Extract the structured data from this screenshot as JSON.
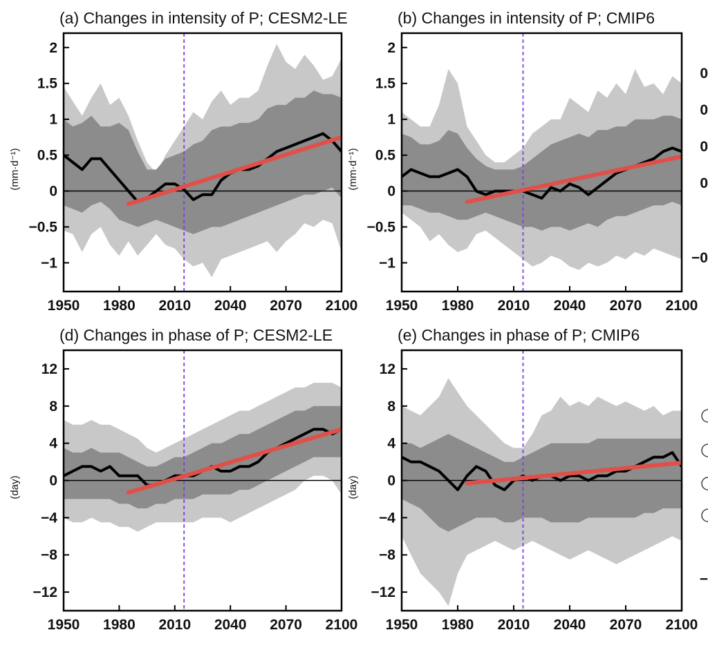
{
  "colors": {
    "band_outer": "#c8c8c8",
    "band_inner": "#8c8c8c",
    "mean_line": "#000000",
    "trend_line": "#e0504a",
    "reference_line": "#7b3fe4",
    "zero_line": "#000000"
  },
  "right_edge": {
    "top_labels": [
      "0",
      "0",
      "0",
      "0",
      "−0"
    ],
    "bottom_labels": [
      "−"
    ]
  },
  "chart_data": [
    {
      "id": "a",
      "type": "line",
      "title": "(a) Changes in intensity of P; CESM2-LE",
      "ylabel": "(mm·d⁻¹)",
      "xlabel": "",
      "xlim": [
        1950,
        2100
      ],
      "ylim": [
        -1.4,
        2.2
      ],
      "xticks": [
        1950,
        1980,
        2010,
        2040,
        2070,
        2100
      ],
      "yticks": [
        -1,
        -0.5,
        0,
        0.5,
        1,
        1.5,
        2
      ],
      "ytick_labels": [
        "−1",
        "−0.5",
        "0",
        "0.5",
        "1",
        "1.5",
        "2"
      ],
      "reference_x": 2015,
      "trend": {
        "x": [
          1985,
          2100
        ],
        "y": [
          -0.18,
          0.75
        ]
      },
      "series": [
        {
          "x": [
            1950,
            1955,
            1960,
            1965,
            1970,
            1975,
            1980,
            1985,
            1990,
            1995,
            2000,
            2005,
            2010,
            2015,
            2020,
            2025,
            2030,
            2035,
            2040,
            2045,
            2050,
            2055,
            2060,
            2065,
            2070,
            2075,
            2080,
            2085,
            2090,
            2095,
            2100
          ],
          "y": [
            0.5,
            0.4,
            0.3,
            0.45,
            0.45,
            0.3,
            0.15,
            0.0,
            -0.15,
            -0.1,
            0.0,
            0.1,
            0.1,
            0.02,
            -0.12,
            -0.05,
            -0.05,
            0.15,
            0.25,
            0.3,
            0.3,
            0.35,
            0.45,
            0.55,
            0.6,
            0.65,
            0.7,
            0.75,
            0.8,
            0.7,
            0.55
          ]
        }
      ],
      "band_outer": {
        "upper": [
          1.45,
          1.25,
          1.05,
          1.3,
          1.5,
          1.2,
          1.3,
          1.05,
          0.7,
          0.4,
          0.25,
          0.5,
          0.7,
          0.9,
          1.1,
          1.0,
          1.25,
          1.4,
          1.2,
          1.3,
          1.3,
          1.4,
          1.75,
          2.05,
          1.8,
          1.7,
          1.9,
          1.75,
          1.55,
          1.6,
          1.85
        ],
        "lower": [
          -0.55,
          -0.6,
          -0.85,
          -0.6,
          -0.5,
          -0.75,
          -0.9,
          -0.7,
          -0.9,
          -0.75,
          -0.6,
          -0.75,
          -0.8,
          -0.95,
          -1.05,
          -1.0,
          -1.2,
          -0.95,
          -0.9,
          -0.85,
          -0.8,
          -0.75,
          -0.7,
          -0.85,
          -0.7,
          -0.6,
          -0.45,
          -0.5,
          -0.4,
          -0.45,
          -0.85
        ]
      },
      "band_inner": {
        "upper": [
          1.0,
          0.9,
          0.95,
          1.05,
          0.9,
          0.9,
          0.95,
          0.85,
          0.55,
          0.3,
          0.3,
          0.45,
          0.5,
          0.55,
          0.65,
          0.7,
          0.85,
          0.9,
          0.9,
          0.95,
          0.95,
          1.0,
          1.15,
          1.2,
          1.2,
          1.3,
          1.3,
          1.4,
          1.35,
          1.35,
          1.3
        ],
        "lower": [
          -0.2,
          -0.25,
          -0.3,
          -0.2,
          -0.15,
          -0.25,
          -0.4,
          -0.45,
          -0.5,
          -0.45,
          -0.4,
          -0.45,
          -0.5,
          -0.55,
          -0.6,
          -0.55,
          -0.5,
          -0.5,
          -0.45,
          -0.4,
          -0.35,
          -0.3,
          -0.25,
          -0.2,
          -0.15,
          -0.1,
          -0.05,
          -0.05,
          0.0,
          0.05,
          -0.1
        ]
      }
    },
    {
      "id": "b",
      "type": "line",
      "title": "(b) Changes in intensity of P; CMIP6",
      "ylabel": "(mm·d⁻¹)",
      "xlabel": "",
      "xlim": [
        1950,
        2100
      ],
      "ylim": [
        -1.4,
        2.2
      ],
      "xticks": [
        1950,
        1980,
        2010,
        2040,
        2070,
        2100
      ],
      "yticks": [
        -1,
        -0.5,
        0,
        0.5,
        1,
        1.5,
        2
      ],
      "ytick_labels": [
        "−1",
        "−0.5",
        "0",
        "0.5",
        "1",
        "1.5",
        "2"
      ],
      "reference_x": 2015,
      "trend": {
        "x": [
          1985,
          2100
        ],
        "y": [
          -0.15,
          0.48
        ]
      },
      "series": [
        {
          "x": [
            1950,
            1955,
            1960,
            1965,
            1970,
            1975,
            1980,
            1985,
            1990,
            1995,
            2000,
            2005,
            2010,
            2015,
            2020,
            2025,
            2030,
            2035,
            2040,
            2045,
            2050,
            2055,
            2060,
            2065,
            2070,
            2075,
            2080,
            2085,
            2090,
            2095,
            2100
          ],
          "y": [
            0.2,
            0.3,
            0.25,
            0.2,
            0.2,
            0.25,
            0.3,
            0.2,
            0.0,
            -0.05,
            0.0,
            0.0,
            0.0,
            0.0,
            -0.05,
            -0.1,
            0.05,
            0.0,
            0.1,
            0.05,
            -0.05,
            0.05,
            0.15,
            0.25,
            0.3,
            0.35,
            0.4,
            0.45,
            0.55,
            0.6,
            0.55
          ]
        }
      ],
      "band_outer": {
        "upper": [
          1.1,
          1.0,
          0.9,
          0.9,
          1.2,
          1.7,
          1.5,
          0.9,
          0.7,
          0.5,
          0.4,
          0.4,
          0.5,
          0.6,
          0.8,
          0.9,
          1.0,
          1.0,
          1.3,
          1.2,
          1.1,
          1.4,
          1.3,
          1.5,
          1.35,
          1.7,
          1.45,
          1.5,
          1.35,
          1.6,
          1.5
        ],
        "lower": [
          -0.3,
          -0.4,
          -0.5,
          -0.7,
          -0.6,
          -0.75,
          -0.85,
          -0.8,
          -0.6,
          -0.55,
          -0.65,
          -0.75,
          -0.85,
          -0.95,
          -1.05,
          -1.0,
          -0.9,
          -0.95,
          -1.05,
          -1.1,
          -1.0,
          -1.05,
          -1.0,
          -0.9,
          -0.95,
          -0.85,
          -0.9,
          -0.8,
          -0.85,
          -0.9,
          -0.95
        ]
      },
      "band_inner": {
        "upper": [
          0.8,
          0.75,
          0.65,
          0.65,
          0.7,
          0.85,
          0.8,
          0.6,
          0.45,
          0.35,
          0.3,
          0.3,
          0.3,
          0.35,
          0.45,
          0.55,
          0.65,
          0.7,
          0.75,
          0.8,
          0.75,
          0.85,
          0.85,
          0.9,
          0.9,
          1.0,
          1.0,
          1.0,
          1.05,
          1.05,
          1.0
        ],
        "lower": [
          -0.2,
          -0.2,
          -0.25,
          -0.3,
          -0.3,
          -0.35,
          -0.4,
          -0.4,
          -0.35,
          -0.3,
          -0.35,
          -0.4,
          -0.45,
          -0.5,
          -0.5,
          -0.55,
          -0.5,
          -0.5,
          -0.55,
          -0.5,
          -0.45,
          -0.5,
          -0.4,
          -0.35,
          -0.35,
          -0.3,
          -0.25,
          -0.2,
          -0.2,
          -0.15,
          -0.2
        ]
      }
    },
    {
      "id": "d",
      "type": "line",
      "title": "(d) Changes in phase of P; CESM2-LE",
      "ylabel": "(day)",
      "xlabel": "",
      "xlim": [
        1950,
        2100
      ],
      "ylim": [
        -14,
        14
      ],
      "xticks": [
        1950,
        1980,
        2010,
        2040,
        2070,
        2100
      ],
      "yticks": [
        -12,
        -8,
        -4,
        0,
        4,
        8,
        12
      ],
      "ytick_labels": [
        "−12",
        "−8",
        "−4",
        "0",
        "4",
        "8",
        "12"
      ],
      "reference_x": 2015,
      "trend": {
        "x": [
          1985,
          2100
        ],
        "y": [
          -1.3,
          5.5
        ]
      },
      "series": [
        {
          "x": [
            1950,
            1955,
            1960,
            1965,
            1970,
            1975,
            1980,
            1985,
            1990,
            1995,
            2000,
            2005,
            2010,
            2015,
            2020,
            2025,
            2030,
            2035,
            2040,
            2045,
            2050,
            2055,
            2060,
            2065,
            2070,
            2075,
            2080,
            2085,
            2090,
            2095,
            2100
          ],
          "y": [
            0.5,
            1.0,
            1.5,
            1.5,
            1.0,
            1.5,
            0.5,
            0.5,
            0.5,
            -0.5,
            -0.5,
            0.0,
            0.5,
            0.5,
            0.5,
            1.0,
            1.5,
            1.0,
            1.0,
            1.5,
            1.5,
            2.0,
            3.0,
            3.5,
            4.0,
            4.5,
            5.0,
            5.5,
            5.5,
            5.0,
            5.5
          ]
        }
      ],
      "band_outer": {
        "upper": [
          6.5,
          6.0,
          6.0,
          6.5,
          6.0,
          6.0,
          5.5,
          5.0,
          4.5,
          3.5,
          3.0,
          3.5,
          4.0,
          4.5,
          5.0,
          5.5,
          6.0,
          6.5,
          7.0,
          7.5,
          7.5,
          8.0,
          8.5,
          9.0,
          9.5,
          10.0,
          10.0,
          10.5,
          10.5,
          10.5,
          10.0
        ],
        "lower": [
          -4.0,
          -4.5,
          -4.5,
          -4.0,
          -4.5,
          -4.5,
          -5.0,
          -5.0,
          -5.5,
          -5.0,
          -4.5,
          -4.5,
          -4.5,
          -4.5,
          -4.5,
          -4.0,
          -4.0,
          -4.0,
          -4.5,
          -4.0,
          -3.5,
          -3.0,
          -2.5,
          -2.0,
          -1.5,
          -1.0,
          0.0,
          0.5,
          0.5,
          0.0,
          -1.5
        ]
      },
      "band_inner": {
        "upper": [
          3.5,
          3.0,
          3.0,
          3.5,
          3.0,
          3.0,
          3.0,
          2.5,
          2.0,
          1.5,
          1.5,
          2.0,
          2.5,
          2.5,
          3.0,
          3.5,
          4.0,
          4.0,
          4.5,
          5.0,
          5.0,
          5.5,
          6.0,
          6.5,
          7.0,
          7.5,
          7.5,
          8.0,
          8.0,
          8.0,
          8.0
        ],
        "lower": [
          -2.0,
          -2.0,
          -2.0,
          -2.0,
          -2.0,
          -2.0,
          -2.5,
          -2.5,
          -3.0,
          -3.0,
          -2.5,
          -2.5,
          -2.0,
          -2.0,
          -2.0,
          -1.5,
          -1.5,
          -1.5,
          -1.5,
          -1.0,
          -1.0,
          -0.5,
          0.0,
          0.5,
          1.0,
          1.5,
          2.0,
          2.5,
          2.5,
          2.5,
          2.5
        ]
      }
    },
    {
      "id": "e",
      "type": "line",
      "title": "(e) Changes in phase of P; CMIP6",
      "ylabel": "(day)",
      "xlabel": "",
      "xlim": [
        1950,
        2100
      ],
      "ylim": [
        -14,
        14
      ],
      "xticks": [
        1950,
        1980,
        2010,
        2040,
        2070,
        2100
      ],
      "yticks": [
        -12,
        -8,
        -4,
        0,
        4,
        8,
        12
      ],
      "ytick_labels": [
        "−12",
        "−8",
        "−4",
        "0",
        "4",
        "8",
        "12"
      ],
      "reference_x": 2015,
      "trend": {
        "x": [
          1985,
          2100
        ],
        "y": [
          -0.3,
          1.9
        ]
      },
      "series": [
        {
          "x": [
            1950,
            1955,
            1960,
            1965,
            1970,
            1975,
            1980,
            1985,
            1990,
            1995,
            2000,
            2005,
            2010,
            2015,
            2020,
            2025,
            2030,
            2035,
            2040,
            2045,
            2050,
            2055,
            2060,
            2065,
            2070,
            2075,
            2080,
            2085,
            2090,
            2095,
            2100
          ],
          "y": [
            2.5,
            2.0,
            2.0,
            1.5,
            1.0,
            0.0,
            -1.0,
            0.5,
            1.5,
            1.0,
            -0.5,
            -1.0,
            0.0,
            0.5,
            0.0,
            0.5,
            0.5,
            0.0,
            0.5,
            0.5,
            0.0,
            0.5,
            0.5,
            1.0,
            1.0,
            1.5,
            2.0,
            2.5,
            2.5,
            3.0,
            1.5
          ]
        }
      ],
      "band_outer": {
        "upper": [
          8.0,
          7.5,
          7.0,
          8.0,
          9.0,
          11.0,
          9.5,
          8.0,
          7.0,
          6.0,
          5.0,
          4.0,
          3.5,
          3.5,
          5.0,
          7.0,
          7.5,
          9.0,
          8.0,
          8.5,
          8.0,
          9.0,
          8.5,
          8.0,
          8.5,
          8.0,
          7.5,
          8.0,
          7.0,
          7.5,
          7.5
        ],
        "lower": [
          -6.0,
          -8.0,
          -10.0,
          -11.0,
          -12.0,
          -13.5,
          -10.0,
          -8.0,
          -7.5,
          -7.0,
          -6.5,
          -7.0,
          -7.5,
          -7.0,
          -6.5,
          -7.0,
          -7.5,
          -8.0,
          -8.5,
          -8.0,
          -7.5,
          -8.0,
          -8.5,
          -9.0,
          -8.5,
          -8.0,
          -7.5,
          -7.0,
          -6.5,
          -6.0,
          -6.5
        ]
      },
      "band_inner": {
        "upper": [
          4.0,
          4.0,
          3.5,
          4.0,
          4.5,
          5.0,
          4.5,
          4.0,
          3.5,
          3.0,
          2.5,
          2.0,
          2.0,
          2.5,
          3.0,
          3.5,
          4.0,
          4.0,
          4.0,
          4.0,
          4.0,
          4.5,
          4.5,
          4.5,
          4.5,
          4.5,
          4.5,
          4.5,
          4.5,
          4.5,
          4.5
        ],
        "lower": [
          -2.0,
          -2.5,
          -3.0,
          -4.0,
          -5.0,
          -5.5,
          -5.0,
          -4.5,
          -4.0,
          -4.0,
          -4.0,
          -4.5,
          -4.5,
          -4.0,
          -4.0,
          -4.0,
          -4.5,
          -4.5,
          -4.5,
          -4.5,
          -4.0,
          -4.0,
          -4.0,
          -4.0,
          -4.0,
          -4.0,
          -3.5,
          -3.5,
          -3.0,
          -3.0,
          -3.0
        ]
      }
    }
  ]
}
